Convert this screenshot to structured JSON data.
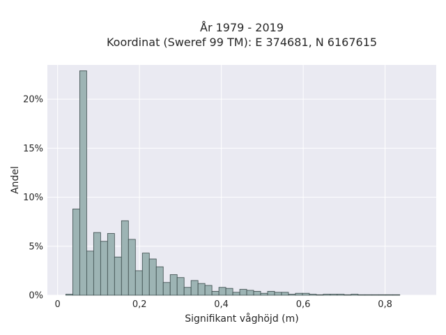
{
  "chart_data": {
    "type": "bar",
    "title_line1": "År 1979 - 2019",
    "title_line2": "Koordinat (Sweref 99 TM): E 374681, N 6167615",
    "xlabel": "Signifikant våghöjd (m)",
    "ylabel": "Andel",
    "xlim": [
      -0.025,
      0.925
    ],
    "ylim": [
      0,
      0.235
    ],
    "x_ticks": [
      0,
      0.2,
      0.4,
      0.6,
      0.8
    ],
    "x_tick_labels": [
      "0",
      "0,2",
      "0,4",
      "0,6",
      "0,8"
    ],
    "y_ticks": [
      0,
      0.05,
      0.1,
      0.15,
      0.2
    ],
    "y_tick_labels": [
      "0%",
      "5%",
      "10%",
      "15%",
      "20%"
    ],
    "bin_width": 0.017,
    "bin_lefts": [
      0.02,
      0.037,
      0.054,
      0.071,
      0.088,
      0.105,
      0.122,
      0.139,
      0.156,
      0.173,
      0.19,
      0.207,
      0.224,
      0.241,
      0.258,
      0.275,
      0.292,
      0.309,
      0.326,
      0.343,
      0.36,
      0.377,
      0.394,
      0.411,
      0.428,
      0.445,
      0.462,
      0.479,
      0.496,
      0.513,
      0.53,
      0.547,
      0.564,
      0.581,
      0.598,
      0.615,
      0.632,
      0.649,
      0.666,
      0.683,
      0.7,
      0.717,
      0.734,
      0.751,
      0.768,
      0.785,
      0.802,
      0.819
    ],
    "values": [
      0.001,
      0.088,
      0.229,
      0.045,
      0.064,
      0.055,
      0.063,
      0.039,
      0.076,
      0.057,
      0.025,
      0.043,
      0.037,
      0.029,
      0.013,
      0.021,
      0.018,
      0.008,
      0.015,
      0.012,
      0.01,
      0.004,
      0.008,
      0.007,
      0.003,
      0.006,
      0.005,
      0.004,
      0.002,
      0.004,
      0.003,
      0.003,
      0.001,
      0.002,
      0.002,
      0.001,
      0.0005,
      0.001,
      0.001,
      0.001,
      0.0005,
      0.001,
      0.0005,
      0.0005,
      0.0005,
      0.0005,
      0.0005,
      0.0005
    ],
    "bar_color": "#9db4b4",
    "bar_edge_color": "#3a4a4a",
    "background_color": "#eaeaf2",
    "grid": true,
    "grid_color": "#ffffff"
  }
}
